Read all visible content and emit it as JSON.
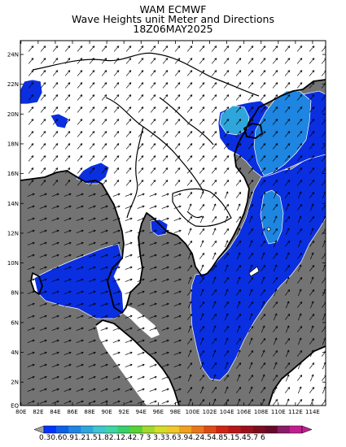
{
  "header": {
    "line1": "WAM ECMWF",
    "line2": "Wave Heights unit Meter and Directions",
    "line3": "18Z06MAY2025"
  },
  "map": {
    "x_ticks": [
      "80E",
      "82E",
      "84E",
      "86E",
      "88E",
      "90E",
      "92E",
      "94E",
      "96E",
      "98E",
      "100E",
      "102E",
      "104E",
      "106E",
      "108E",
      "110E",
      "112E",
      "114E"
    ],
    "y_ticks": [
      "24N",
      "22N",
      "20N",
      "18N",
      "16N",
      "14N",
      "12N",
      "10N",
      "8N",
      "6N",
      "4N",
      "2N",
      "EQ"
    ],
    "land_color": "#ffffff",
    "nodata_color": "#737373",
    "grid": false
  },
  "colorbar": {
    "labels": "0.30.60.91.21.51.82.12.42.7 3 3.33.63.94.24.54.85.15.45.7 6",
    "colors": [
      "#0033ff",
      "#0c5fe8",
      "#1e85e0",
      "#2ea6dc",
      "#3fc4d0",
      "#3fd4a6",
      "#37d06a",
      "#58d234",
      "#a0d92c",
      "#d4dd28",
      "#f0c82a",
      "#f0a21f",
      "#e8771a",
      "#de4a16",
      "#cf2315",
      "#b71618",
      "#9a0f1b",
      "#7d0c20",
      "#660a28",
      "#8a1a6a",
      "#c21d8e"
    ],
    "arrow_left": "#a0a0a0",
    "arrow_right": "#c21d8e"
  }
}
